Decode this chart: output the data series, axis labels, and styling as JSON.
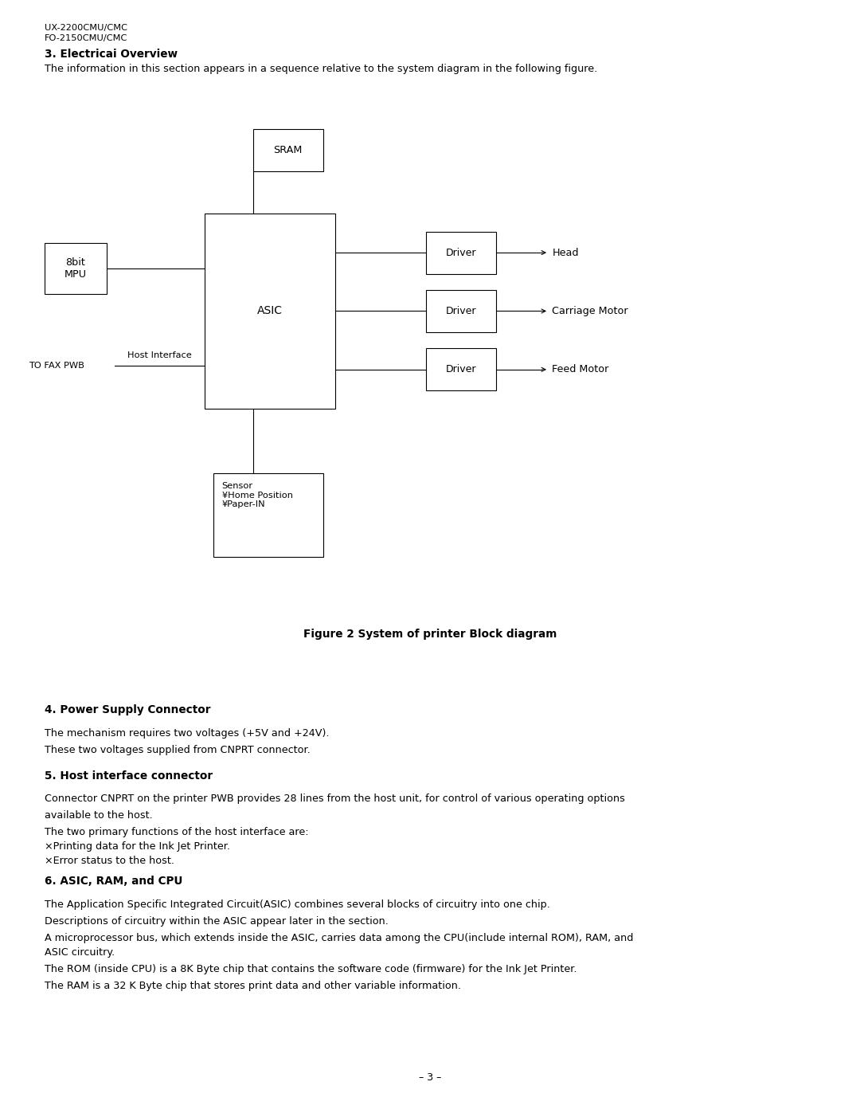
{
  "bg_color": "#ffffff",
  "page_width": 10.8,
  "page_height": 13.97,
  "header_line1": "UX-2200CMU/CMC",
  "header_line2": "FO-2150CMU/CMC",
  "section3_title": "3. Electricai Overview",
  "section3_body": "The information in this section appears in a sequence relative to the system diagram in the following figure.",
  "figure_caption": "Figure 2 System of printer Block diagram",
  "section4_title": "4. Power Supply Connector",
  "section4_body_line1": "The mechanism requires two voltages (+5V and +24V).",
  "section4_body_line2": "These two voltages supplied from CNPRT connector.",
  "section5_title": "5. Host interface connector",
  "section5_body_line1": "Connector CNPRT on the printer PWB provides 28 lines from the host unit, for control of various operating options",
  "section5_body_line2": "available to the host.",
  "section5_body_line3": "The two primary functions of the host interface are:",
  "section5_body_line4": "×Printing data for the Ink Jet Printer.",
  "section5_body_line5": "×Error status to the host.",
  "section6_title": "6. ASIC, RAM, and CPU",
  "section6_body_line1": "The Application Specific Integrated Circuit(ASIC) combines several blocks of circuitry into one chip.",
  "section6_body_line2": "Descriptions of circuitry within the ASIC appear later in the section.",
  "section6_body_line3": "A microprocessor bus, which extends inside the ASIC, carries data among the CPU(include internal ROM), RAM, and",
  "section6_body_line4": "ASIC circuitry.",
  "section6_body_line5": "The ROM (inside CPU) is a 8K Byte chip that contains the software code (firmware) for the Ink Jet Printer.",
  "section6_body_line6": "The RAM is a 32 K Byte chip that stores print data and other variable information.",
  "page_number": "– 3 –",
  "diagram": {
    "asic_label": "ASIC",
    "sram_label": "SRAM",
    "mpu_label": "8bit\nMPU",
    "sensor_label": "Sensor\n¥Home Position\n¥Paper-IN",
    "driver_label": "Driver",
    "head_label": "Head",
    "carriage_label": "Carriage Motor",
    "feed_label": "Feed Motor",
    "host_interface_label": "Host Interface",
    "to_fax_pwb_label": "TO FAX PWB"
  }
}
